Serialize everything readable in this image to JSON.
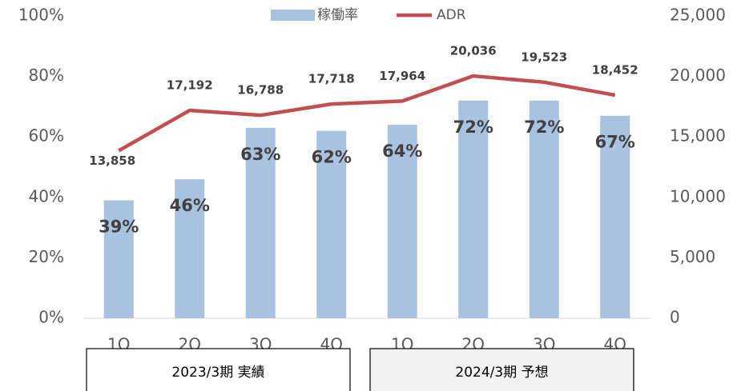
{
  "chart_data": {
    "type": "bar_line",
    "categories": [
      "1Q",
      "2Q",
      "3Q",
      "4Q",
      "1Q",
      "2Q",
      "3Q",
      "4Q"
    ],
    "series": [
      {
        "name": "稼働率",
        "type": "bar",
        "color": "#a9c2e0",
        "values": [
          39,
          46,
          63,
          62,
          64,
          72,
          72,
          67
        ],
        "value_labels": [
          "39%",
          "46%",
          "63%",
          "62%",
          "64%",
          "72%",
          "72%",
          "67%"
        ]
      },
      {
        "name": "ADR",
        "type": "line",
        "axis": "y2",
        "color": "#c0504d",
        "values": [
          13858,
          17192,
          16788,
          17718,
          17964,
          20036,
          19523,
          18452
        ],
        "value_labels": [
          "13,858",
          "17,192",
          "16,788",
          "17,718",
          "17,964",
          "20,036",
          "19,523",
          "18,452"
        ]
      }
    ],
    "ylim": [
      0,
      100
    ],
    "yticks": [
      {
        "value": 0,
        "label": "0%"
      },
      {
        "value": 20,
        "label": "20%"
      },
      {
        "value": 40,
        "label": "40%"
      },
      {
        "value": 60,
        "label": "60%"
      },
      {
        "value": 80,
        "label": "80%"
      },
      {
        "value": 100,
        "label": "100%"
      }
    ],
    "y2lim": [
      0,
      25000
    ],
    "y2ticks": [
      0,
      {
        "value": 5000,
        "label": "5,000"
      },
      {
        "value": 10000,
        "label": "10,000"
      },
      {
        "value": 15000,
        "label": "15,000"
      },
      {
        "value": 20000,
        "label": "20,000"
      },
      {
        "value": 25000,
        "label": "25,000"
      }
    ],
    "legend": "top",
    "groups": [
      {
        "label": "2023/3期 実績",
        "color": "#ffffff"
      },
      {
        "label": "2024/3期 予想",
        "color": "#f2f2f2"
      }
    ]
  }
}
